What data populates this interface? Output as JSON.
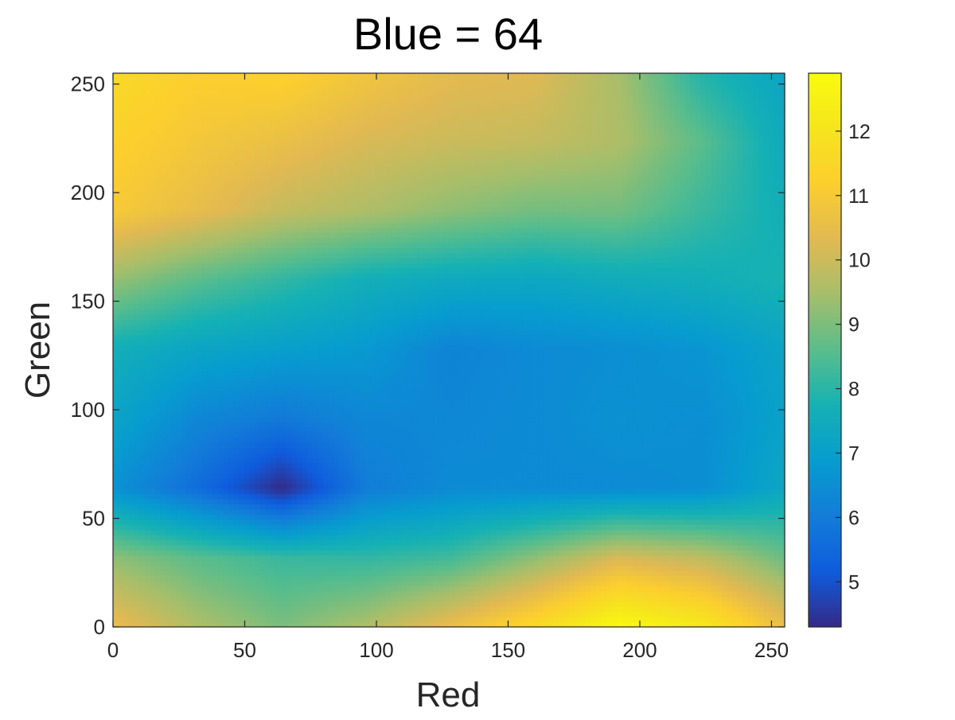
{
  "chart_data": {
    "type": "heatmap",
    "title": "Blue = 64",
    "xlabel": "Red",
    "ylabel": "Green",
    "xlim": [
      0,
      255
    ],
    "ylim": [
      0,
      255
    ],
    "x_ticks": [
      0,
      50,
      100,
      150,
      200,
      250
    ],
    "y_ticks": [
      0,
      50,
      100,
      150,
      200,
      250
    ],
    "colorbar": {
      "range": [
        4.3,
        12.9
      ],
      "ticks": [
        5,
        6,
        7,
        8,
        9,
        10,
        11,
        12
      ],
      "colormap": "parula",
      "placement": "right"
    },
    "grid_x": [
      0,
      32,
      64,
      96,
      128,
      160,
      192,
      224,
      255
    ],
    "grid_y": [
      0,
      32,
      64,
      96,
      128,
      160,
      192,
      224,
      255
    ],
    "z": [
      [
        10.6,
        9.6,
        9.0,
        9.6,
        10.6,
        11.6,
        12.9,
        12.2,
        10.6
      ],
      [
        9.2,
        8.6,
        8.2,
        8.1,
        8.3,
        9.2,
        10.2,
        9.8,
        8.8
      ],
      [
        6.6,
        5.6,
        4.3,
        6.0,
        6.4,
        6.4,
        6.4,
        6.5,
        7.3
      ],
      [
        7.2,
        6.3,
        5.9,
        6.3,
        6.3,
        6.4,
        6.6,
        6.5,
        7.1
      ],
      [
        7.6,
        7.2,
        7.0,
        6.8,
        6.2,
        6.4,
        6.5,
        6.7,
        7.2
      ],
      [
        9.3,
        8.6,
        8.1,
        7.6,
        7.4,
        7.3,
        7.5,
        7.6,
        7.8
      ],
      [
        11.0,
        10.5,
        9.9,
        9.6,
        9.2,
        8.9,
        8.9,
        8.2,
        7.6
      ],
      [
        11.3,
        10.9,
        10.6,
        10.2,
        10.0,
        9.9,
        9.6,
        8.6,
        7.4
      ],
      [
        11.6,
        11.2,
        11.3,
        10.8,
        10.4,
        10.3,
        9.5,
        7.9,
        7.2
      ]
    ]
  },
  "colors": {
    "axis": "#262626",
    "background": "#ffffff"
  }
}
